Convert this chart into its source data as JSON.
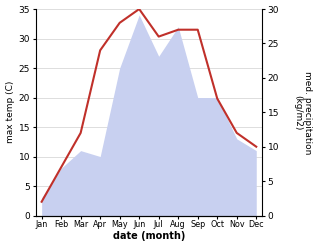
{
  "months_labels": [
    "Jan",
    "Feb",
    "Mar",
    "Apr",
    "May",
    "Jun",
    "Jul",
    "Aug",
    "Sep",
    "Oct",
    "Nov",
    "Dec"
  ],
  "temp_values": [
    3,
    8,
    11,
    10,
    25,
    34,
    27,
    32,
    20,
    20,
    13,
    11
  ],
  "precip_values": [
    2,
    7,
    12,
    24,
    28,
    30,
    26,
    27,
    27,
    17,
    12,
    10
  ],
  "area_color": "#c8d0f0",
  "line_color": "#c0302a",
  "ylabel_left": "max temp (C)",
  "ylabel_right": "med. precipitation\n(kg/m2)",
  "xlabel": "date (month)",
  "ylim_left": [
    0,
    35
  ],
  "ylim_right": [
    0,
    30
  ],
  "yticks_left": [
    0,
    5,
    10,
    15,
    20,
    25,
    30,
    35
  ],
  "yticks_right": [
    0,
    5,
    10,
    15,
    20,
    25,
    30
  ],
  "figsize": [
    3.18,
    2.47
  ],
  "dpi": 100
}
